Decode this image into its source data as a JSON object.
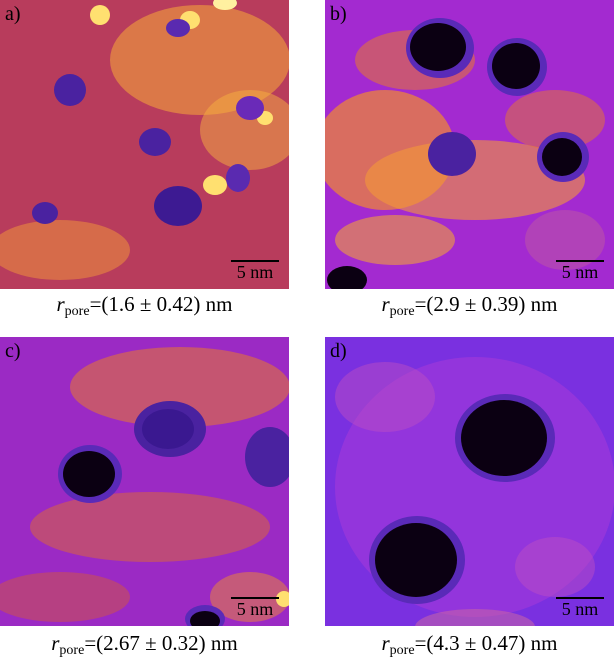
{
  "panels": [
    {
      "letter": "a)",
      "scale_label": "5 nm",
      "caption": {
        "r": "r",
        "sub": "pore",
        "value": "=(1.6 ± 0.42) nm"
      },
      "base_color": "#c8422e",
      "pore_color": "#0b0012"
    },
    {
      "letter": "b)",
      "scale_label": "5 nm",
      "caption": {
        "r": "r",
        "sub": "pore",
        "value": "=(2.9 ± 0.39) nm"
      },
      "base_color": "#a32ad0",
      "pore_color": "#0b0012"
    },
    {
      "letter": "c)",
      "scale_label": "5 nm",
      "caption": {
        "r": "r",
        "sub": "pore",
        "value": "=(2.67 ± 0.32) nm"
      },
      "base_color": "#9b27c4",
      "pore_color": "#0b0012"
    },
    {
      "letter": "d)",
      "scale_label": "5 nm",
      "caption": {
        "r": "r",
        "sub": "pore",
        "value": "=(4.3 ± 0.47) nm"
      },
      "base_color": "#8a2be2",
      "pore_color": "#0b0012"
    }
  ]
}
